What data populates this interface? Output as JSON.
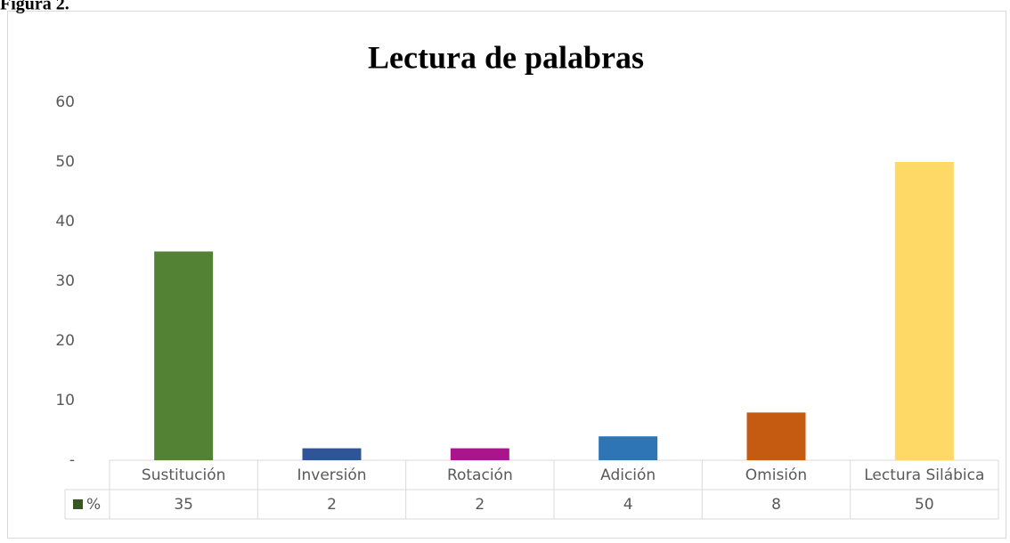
{
  "caption": "Figura 2.",
  "chart_data": {
    "type": "bar",
    "title": "Lectura de palabras",
    "categories": [
      "Sustitución",
      "Inversión",
      "Rotación",
      "Adición",
      "Omisión",
      "Lectura Silábica"
    ],
    "series": [
      {
        "name": "%",
        "color": "#375623",
        "colors": [
          "#548235",
          "#2f5597",
          "#a9168c",
          "#2e75b6",
          "#c55a11",
          "#ffd966"
        ],
        "values": [
          35,
          2,
          2,
          4,
          8,
          50
        ]
      }
    ],
    "ylim": [
      0,
      60
    ],
    "yticks": [
      {
        "value": 0,
        "label": "-"
      },
      10,
      20,
      30,
      40,
      50,
      60
    ],
    "grid": false,
    "data_table": true
  }
}
